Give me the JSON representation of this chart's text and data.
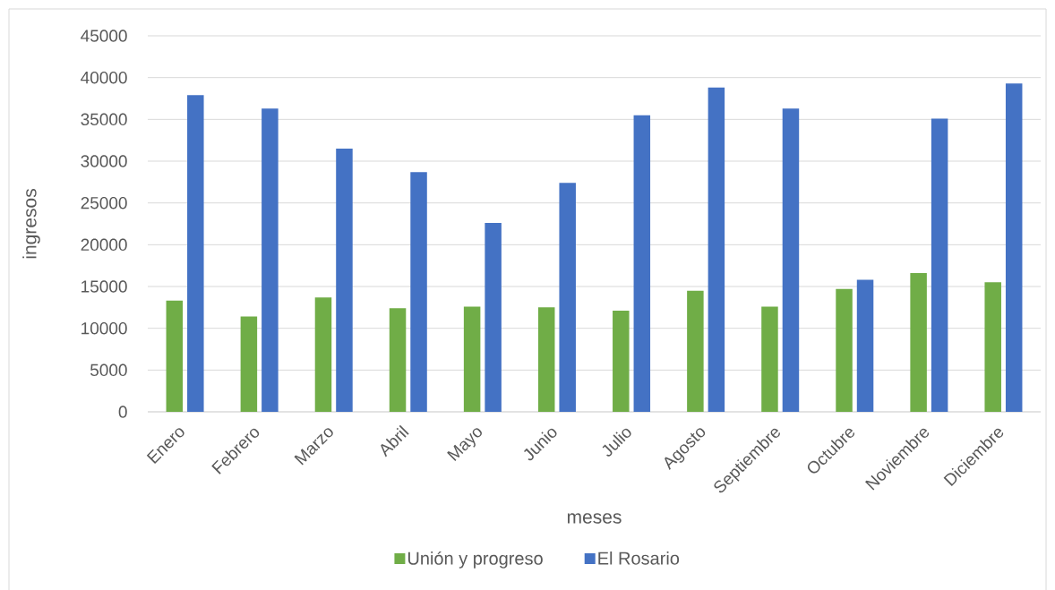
{
  "chart_data": {
    "type": "bar",
    "xlabel": "meses",
    "ylabel": "ingresos",
    "categories": [
      "Enero",
      "Febrero",
      "Marzo",
      "Abril",
      "Mayo",
      "Junio",
      "Julio",
      "Agosto",
      "Septiembre",
      "Octubre",
      "Noviembre",
      "Diciembre"
    ],
    "series": [
      {
        "name": "Unión y progreso",
        "color": "#70ad47",
        "values": [
          13300,
          11400,
          13700,
          12400,
          12600,
          12500,
          12100,
          14500,
          12600,
          14700,
          16600,
          15500
        ]
      },
      {
        "name": "El Rosario",
        "color": "#4472c4",
        "values": [
          37900,
          36300,
          31500,
          28700,
          22600,
          27400,
          35500,
          38800,
          36300,
          15800,
          35100,
          39300
        ]
      }
    ],
    "ylim": [
      0,
      45000
    ],
    "yticks": [
      0,
      5000,
      10000,
      15000,
      20000,
      25000,
      30000,
      35000,
      40000,
      45000
    ],
    "grid": "y",
    "legend": "bottom"
  }
}
